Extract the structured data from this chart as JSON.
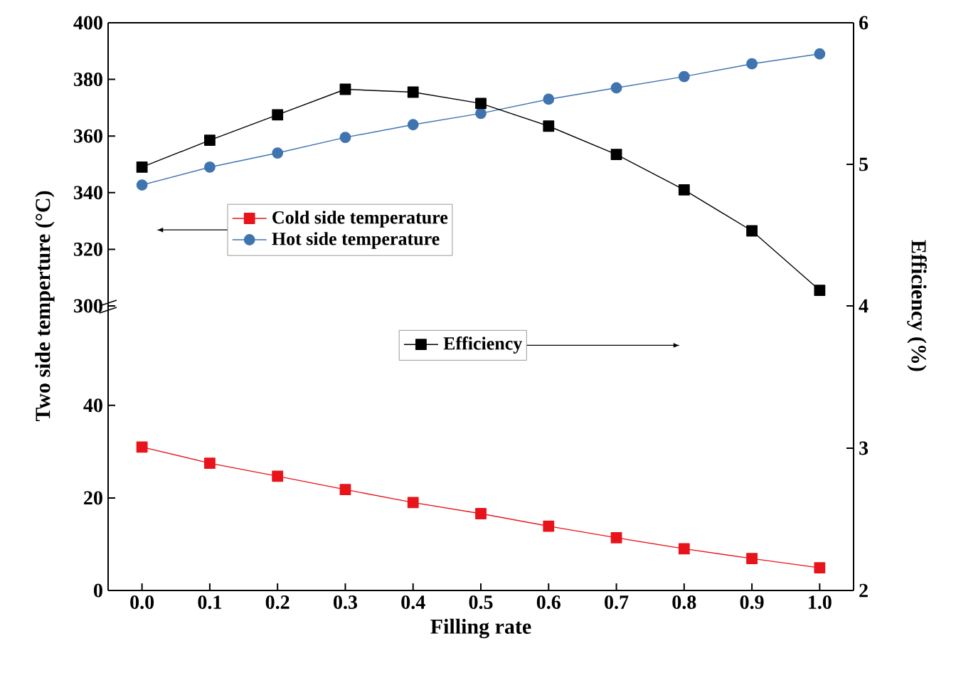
{
  "chart_data": [
    {
      "type": "line",
      "x": [
        0.0,
        0.1,
        0.2,
        0.3,
        0.4,
        0.5,
        0.6,
        0.7,
        0.8,
        0.9,
        1.0
      ],
      "xlim": [
        -0.05,
        1.05
      ],
      "tick_labels": "y",
      "ylim": [
        300,
        400
      ],
      "yticks": [
        300,
        320,
        340,
        360,
        380,
        400
      ],
      "y2lim": [
        4,
        6
      ],
      "y2ticks": [
        4,
        5,
        6
      ],
      "legend": "left",
      "series": [
        {
          "name": "Hot side temperature",
          "color": "#3f74b0",
          "marker": "circle",
          "values": [
            342.7,
            349,
            354,
            359.5,
            364,
            368,
            373,
            377,
            381,
            385.5,
            389
          ]
        },
        {
          "name": "Efficiency",
          "color": "#000000",
          "marker": "square",
          "axis": "y2",
          "values": [
            4.98,
            5.17,
            5.35,
            5.53,
            5.51,
            5.43,
            5.27,
            5.07,
            4.82,
            4.53,
            4.11
          ]
        }
      ]
    },
    {
      "type": "line",
      "x": [
        0.0,
        0.1,
        0.2,
        0.3,
        0.4,
        0.5,
        0.6,
        0.7,
        0.8,
        0.9,
        1.0
      ],
      "xlim": [
        -0.05,
        1.05
      ],
      "xticks": [
        {
          "value": 0.0,
          "label": "0.0"
        },
        0.1,
        0.2,
        0.3,
        0.4,
        0.5,
        0.6,
        0.7,
        0.8,
        0.9,
        {
          "value": 1.0,
          "label": "1.0"
        }
      ],
      "xlabel": "Filling rate",
      "ylabel": "Two side temperture (°C)",
      "y2label": "Efficiency (%)",
      "ylim": [
        0,
        61.5
      ],
      "yticks": [
        0,
        20,
        40
      ],
      "y2lim": [
        2,
        4
      ],
      "y2ticks": [
        2,
        3
      ],
      "legend": "top",
      "series": [
        {
          "name": "Cold side temperature",
          "color": "#e8141b",
          "marker": "square",
          "values": [
            31,
            27.5,
            24.7,
            21.8,
            19,
            16.6,
            13.9,
            11.4,
            9,
            6.9,
            4.9
          ]
        }
      ]
    }
  ]
}
